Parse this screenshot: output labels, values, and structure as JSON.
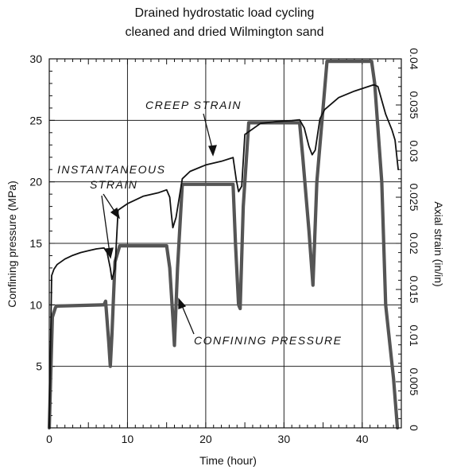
{
  "chart_data": {
    "type": "line",
    "title_lines": [
      "Drained hydrostatic load cycling",
      "cleaned and dried Wilmington sand"
    ],
    "xlabel": "Time (hour)",
    "ylabel": "Confining pressure (MPa)",
    "y2label": "Axial strain (in/in)",
    "xlim": [
      0,
      45
    ],
    "ylim": [
      0,
      30
    ],
    "y2lim": [
      0,
      0.04
    ],
    "x_ticks": [
      0,
      10,
      20,
      30,
      40
    ],
    "x_tick_labels": [
      "0",
      "10",
      "20",
      "30",
      "40"
    ],
    "y_ticks": [
      5,
      10,
      15,
      20,
      25,
      30
    ],
    "y_tick_labels": [
      "5",
      "10",
      "15",
      "20",
      "25",
      "30"
    ],
    "y2_ticks": [
      0,
      0.005,
      0.01,
      0.015,
      0.02,
      0.025,
      0.03,
      0.035,
      0.04
    ],
    "y2_tick_labels": [
      "0",
      "0.005",
      "0.01",
      "0.015",
      "0.02",
      "0.025",
      "0.03",
      "0.035",
      "0.04"
    ],
    "grid": true,
    "annotations": [
      "CREEP STRAIN",
      "INSTANTANEOUS",
      "STRAIN",
      "CONFINING PRESSURE"
    ],
    "series": [
      {
        "role": "confining-pressure",
        "axis": "left",
        "color": "#555555",
        "x": [
          0,
          0.4,
          0.8,
          1.0,
          7.0,
          7.2,
          7.6,
          7.8,
          8.0,
          8.4,
          9.0,
          15.0,
          15.4,
          15.8,
          16.0,
          16.4,
          17.0,
          23.5,
          23.8,
          24.2,
          24.4,
          24.8,
          25.5,
          32.0,
          32.4,
          33.2,
          33.7,
          34.2,
          35.5,
          41.2,
          41.6,
          42.5,
          43.0,
          44.0,
          44.5
        ],
        "y": [
          0,
          9.0,
          9.8,
          9.9,
          10.0,
          10.3,
          7.0,
          5.0,
          7.5,
          13.5,
          14.8,
          14.8,
          13.0,
          9.0,
          6.7,
          13.0,
          19.8,
          19.8,
          15.0,
          10.0,
          9.7,
          18.0,
          24.8,
          24.8,
          22.0,
          16.0,
          11.6,
          20.0,
          29.8,
          29.8,
          28.0,
          20.0,
          10.0,
          4.0,
          0
        ]
      },
      {
        "role": "axial-strain",
        "axis": "right",
        "color": "#111111",
        "x": [
          0,
          0.3,
          0.6,
          1.0,
          2,
          3,
          4,
          5,
          6,
          7.0,
          7.4,
          7.8,
          8.0,
          8.4,
          8.8,
          10,
          12,
          14,
          15.0,
          15.4,
          15.6,
          15.8,
          16.2,
          17,
          18,
          20,
          22,
          23.5,
          23.9,
          24.2,
          24.6,
          25,
          27,
          29,
          31,
          32.0,
          32.6,
          33.2,
          33.6,
          34.0,
          34.6,
          35.2,
          37,
          39,
          41.5,
          42.0,
          43.0,
          43.8,
          44.2,
          44.6
        ],
        "y": [
          0,
          0.0165,
          0.0172,
          0.0177,
          0.0183,
          0.0187,
          0.019,
          0.0192,
          0.0194,
          0.0195,
          0.019,
          0.0173,
          0.0161,
          0.0172,
          0.0236,
          0.0243,
          0.0251,
          0.0255,
          0.0258,
          0.025,
          0.0232,
          0.0217,
          0.0228,
          0.027,
          0.0278,
          0.0285,
          0.0289,
          0.0293,
          0.0269,
          0.0256,
          0.0262,
          0.0318,
          0.033,
          0.0332,
          0.0333,
          0.0334,
          0.0325,
          0.0305,
          0.0296,
          0.0301,
          0.0335,
          0.0345,
          0.0358,
          0.0365,
          0.0372,
          0.037,
          0.034,
          0.0323,
          0.0312,
          0.028
        ]
      }
    ]
  }
}
